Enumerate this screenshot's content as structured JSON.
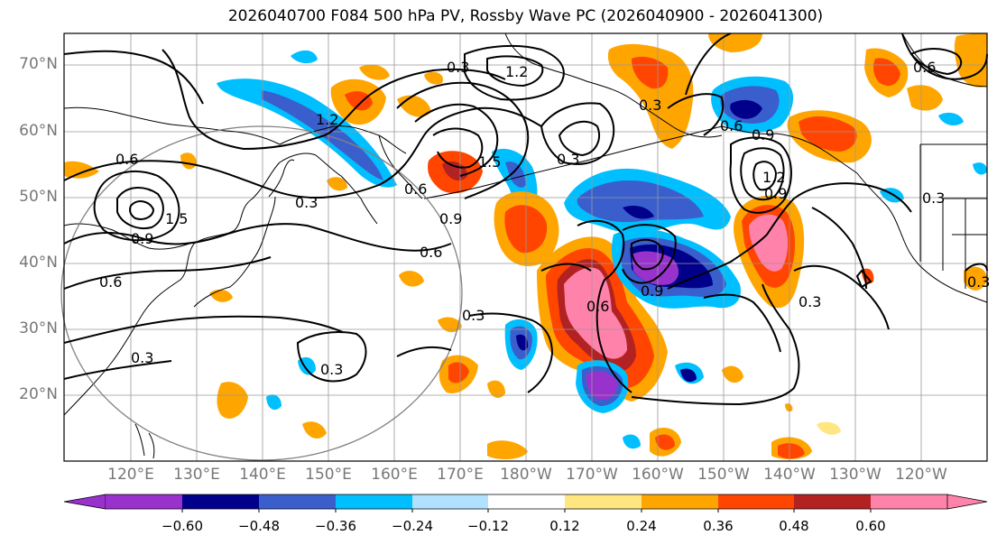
{
  "title": "2026040700 F084 500 hPa PV, Rossby Wave PC (2026040900 - 2026041300)",
  "lat_labels": [
    "70°N",
    "60°N",
    "50°N",
    "40°N",
    "30°N",
    "20°N"
  ],
  "lon_labels": [
    "120°E",
    "130°E",
    "140°E",
    "150°E",
    "160°E",
    "170°E",
    "180°W",
    "170°W",
    "160°W",
    "150°W",
    "140°W",
    "130°W",
    "120°W"
  ],
  "colorbar": {
    "tick_labels": [
      "−0.60",
      "−0.48",
      "−0.36",
      "−0.24",
      "−0.12",
      "0.12",
      "0.24",
      "0.36",
      "0.48",
      "0.60"
    ],
    "colors": [
      "#9932cc",
      "#00008b",
      "#3a5fcd",
      "#00bfff",
      "#b0e2ff",
      "#ffffff",
      "#ffe680",
      "#ffa500",
      "#ff4500",
      "#b22222",
      "#ff82ab"
    ]
  },
  "contour_labels": [
    "0.6",
    "0.9",
    "1.2",
    "1.5",
    "0.3",
    "0.6",
    "0.9",
    "1.5",
    "0.6",
    "0.3",
    "0.6",
    "0.3",
    "0.3",
    "0.6",
    "0.9",
    "0.3",
    "0.3",
    "0.3",
    "1.2",
    "0.9",
    "0.6",
    "0.9",
    "1.2",
    "0.3",
    "0.3",
    "0.6",
    "0.3"
  ],
  "colors": {
    "grid": "#999999",
    "contour": "#000000",
    "coast": "#000000",
    "circle": "#808080",
    "axis_label": "#777777"
  }
}
